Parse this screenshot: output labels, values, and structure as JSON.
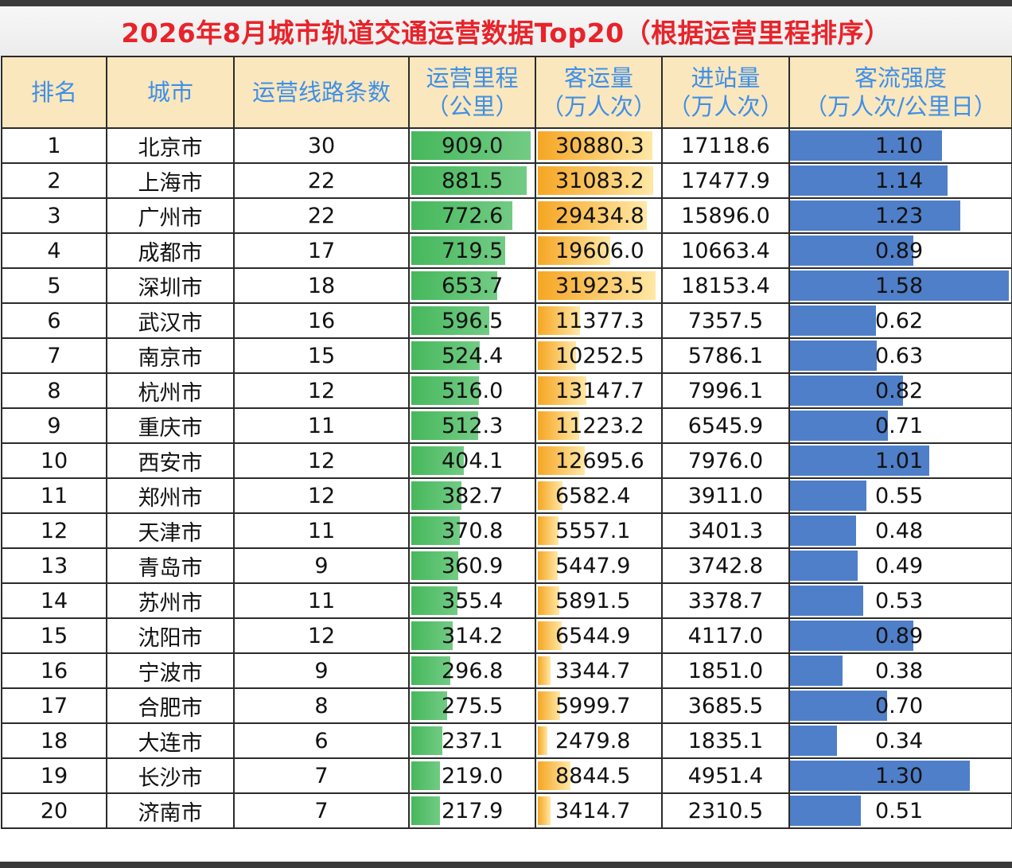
{
  "title": "2026年8月城市轨道交通运营数据Top20（根据运营里程排序）",
  "headers": {
    "rank": "排名",
    "city": "城市",
    "lines": "运营线路条数",
    "mileage": [
      "运营里程",
      "（公里）"
    ],
    "passenger": [
      "客运量",
      "（万人次）"
    ],
    "inbound": [
      "进站量",
      "（万人次）"
    ],
    "intensity": [
      "客流强度",
      "（万人次/公里日）"
    ]
  },
  "colors": {
    "title": "#e8232a",
    "header_text": "#3e8fe8",
    "header_bg": "#fbe7bd",
    "mileage_bar": "#46b85c",
    "passenger_bar": "#f6a623",
    "intensity_bar": "#4f7fc8"
  },
  "rows": [
    {
      "rank": "1",
      "city": "北京市",
      "lines": "30",
      "mileage": "909.0",
      "passenger": "30880.3",
      "inbound": "17118.6",
      "intensity": "1.10"
    },
    {
      "rank": "2",
      "city": "上海市",
      "lines": "22",
      "mileage": "881.5",
      "passenger": "31083.2",
      "inbound": "17477.9",
      "intensity": "1.14"
    },
    {
      "rank": "3",
      "city": "广州市",
      "lines": "22",
      "mileage": "772.6",
      "passenger": "29434.8",
      "inbound": "15896.0",
      "intensity": "1.23"
    },
    {
      "rank": "4",
      "city": "成都市",
      "lines": "17",
      "mileage": "719.5",
      "passenger": "19606.0",
      "inbound": "10663.4",
      "intensity": "0.89"
    },
    {
      "rank": "5",
      "city": "深圳市",
      "lines": "18",
      "mileage": "653.7",
      "passenger": "31923.5",
      "inbound": "18153.4",
      "intensity": "1.58"
    },
    {
      "rank": "6",
      "city": "武汉市",
      "lines": "16",
      "mileage": "596.5",
      "passenger": "11377.3",
      "inbound": "7357.5",
      "intensity": "0.62"
    },
    {
      "rank": "7",
      "city": "南京市",
      "lines": "15",
      "mileage": "524.4",
      "passenger": "10252.5",
      "inbound": "5786.1",
      "intensity": "0.63"
    },
    {
      "rank": "8",
      "city": "杭州市",
      "lines": "12",
      "mileage": "516.0",
      "passenger": "13147.7",
      "inbound": "7996.1",
      "intensity": "0.82"
    },
    {
      "rank": "9",
      "city": "重庆市",
      "lines": "11",
      "mileage": "512.3",
      "passenger": "11223.2",
      "inbound": "6545.9",
      "intensity": "0.71"
    },
    {
      "rank": "10",
      "city": "西安市",
      "lines": "12",
      "mileage": "404.1",
      "passenger": "12695.6",
      "inbound": "7976.0",
      "intensity": "1.01"
    },
    {
      "rank": "11",
      "city": "郑州市",
      "lines": "12",
      "mileage": "382.7",
      "passenger": "6582.4",
      "inbound": "3911.0",
      "intensity": "0.55"
    },
    {
      "rank": "12",
      "city": "天津市",
      "lines": "11",
      "mileage": "370.8",
      "passenger": "5557.1",
      "inbound": "3401.3",
      "intensity": "0.48"
    },
    {
      "rank": "13",
      "city": "青岛市",
      "lines": "9",
      "mileage": "360.9",
      "passenger": "5447.9",
      "inbound": "3742.8",
      "intensity": "0.49"
    },
    {
      "rank": "14",
      "city": "苏州市",
      "lines": "11",
      "mileage": "355.4",
      "passenger": "5891.5",
      "inbound": "3378.7",
      "intensity": "0.53"
    },
    {
      "rank": "15",
      "city": "沈阳市",
      "lines": "12",
      "mileage": "314.2",
      "passenger": "6544.9",
      "inbound": "4117.0",
      "intensity": "0.89"
    },
    {
      "rank": "16",
      "city": "宁波市",
      "lines": "9",
      "mileage": "296.8",
      "passenger": "3344.7",
      "inbound": "1851.0",
      "intensity": "0.38"
    },
    {
      "rank": "17",
      "city": "合肥市",
      "lines": "8",
      "mileage": "275.5",
      "passenger": "5999.7",
      "inbound": "3685.5",
      "intensity": "0.70"
    },
    {
      "rank": "18",
      "city": "大连市",
      "lines": "6",
      "mileage": "237.1",
      "passenger": "2479.8",
      "inbound": "1835.1",
      "intensity": "0.34"
    },
    {
      "rank": "19",
      "city": "长沙市",
      "lines": "7",
      "mileage": "219.0",
      "passenger": "8844.5",
      "inbound": "4951.4",
      "intensity": "1.30"
    },
    {
      "rank": "20",
      "city": "济南市",
      "lines": "7",
      "mileage": "217.9",
      "passenger": "3414.7",
      "inbound": "2310.5",
      "intensity": "0.51"
    }
  ]
}
